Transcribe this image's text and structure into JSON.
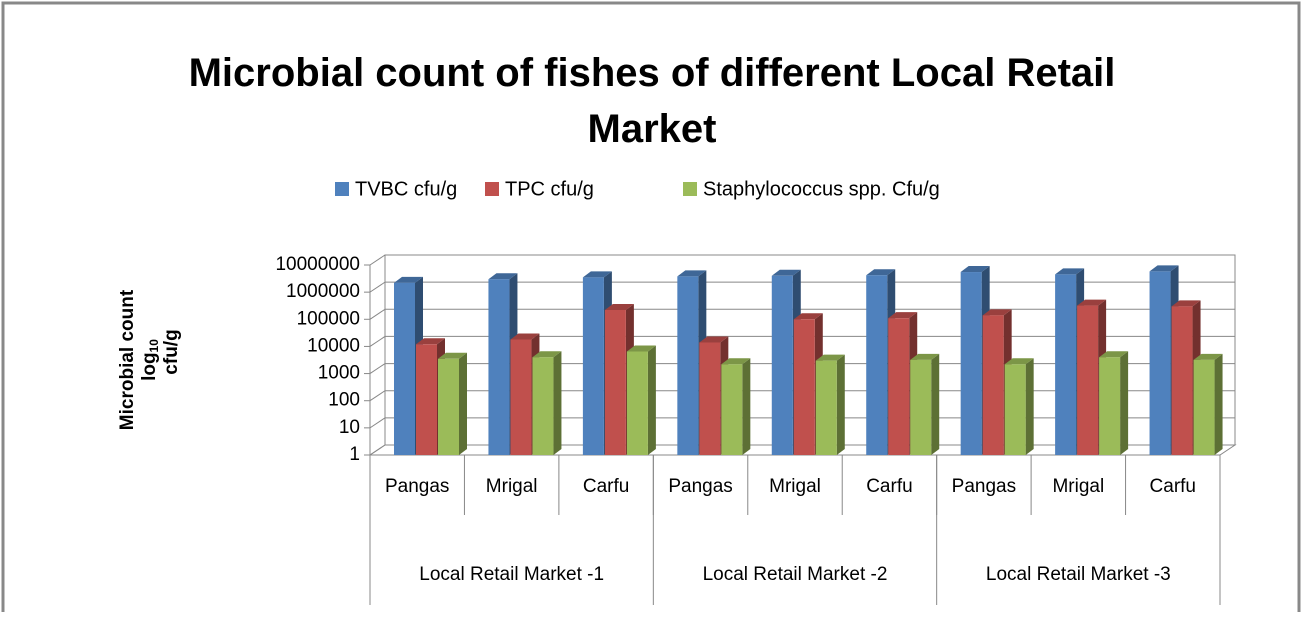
{
  "chart_data": {
    "type": "bar3d",
    "title": "Microbial count of fishes of different Local Retail Market",
    "ylabel": {
      "line1": "Microbial count",
      "line2": "log",
      "line2_sub": "10",
      "line3": "cfu/g"
    },
    "categories": [
      "Pangas",
      "Mrigal",
      "Carfu",
      "Pangas",
      "Mrigal",
      "Carfu",
      "Pangas",
      "Mrigal",
      "Carfu"
    ],
    "groups": [
      "Local Retail Market -1",
      "Local Retail Market -2",
      "Local Retail Market -3"
    ],
    "series": [
      {
        "name": "TVBC cfu/g",
        "color": "#4f81bd",
        "values": [
          2200000,
          3000000,
          3500000,
          3800000,
          4000000,
          4200000,
          5500000,
          4500000,
          5800000
        ]
      },
      {
        "name": "TPC cfu/g",
        "color": "#c0504d",
        "values": [
          12000,
          18000,
          220000,
          14000,
          100000,
          110000,
          140000,
          320000,
          300000
        ]
      },
      {
        "name": "Staphylococcus spp. Cfu/g",
        "color": "#9bbb59",
        "values": [
          3500,
          4000,
          6500,
          2200,
          3000,
          3200,
          2200,
          4000,
          3200
        ]
      }
    ],
    "ylim": [
      1,
      10000000
    ],
    "yticks": [
      1,
      10,
      100,
      1000,
      10000,
      100000,
      1000000,
      10000000
    ],
    "log_y": true,
    "grid": true,
    "legend": "top"
  }
}
